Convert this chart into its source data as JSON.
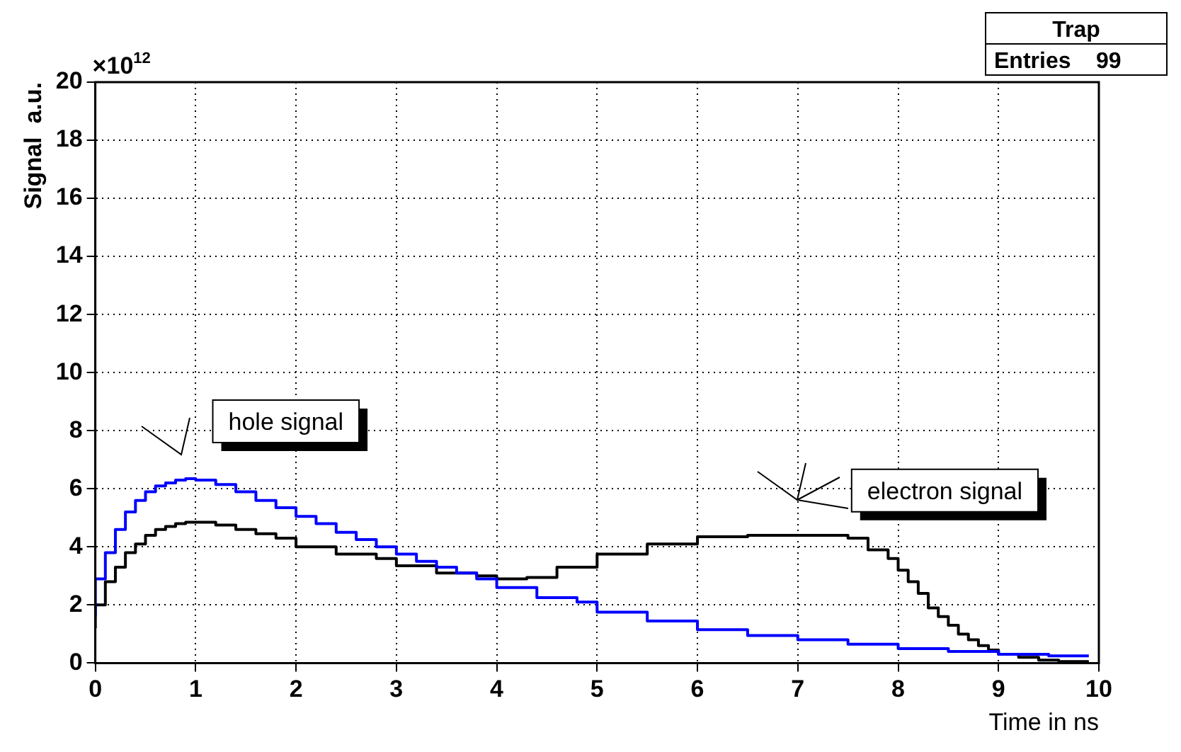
{
  "chart_data": {
    "type": "step",
    "xlabel": "Time in ns",
    "ylabel": "Signal  a.u.",
    "xlim": [
      0,
      10
    ],
    "xticks": [
      0,
      1,
      2,
      3,
      4,
      5,
      6,
      7,
      8,
      9,
      10
    ],
    "ylim": [
      0,
      20
    ],
    "yticks": [
      0,
      2,
      4,
      6,
      8,
      10,
      12,
      14,
      16,
      18,
      20
    ],
    "grid": true,
    "legend": false,
    "marker": "none",
    "annotations": [
      "×10$^{12}$",
      "Trap",
      "Entries    99",
      "hole signal",
      "electron signal"
    ],
    "series": [
      {
        "color": "#0000ff",
        "x": [
          0,
          0.1,
          0.2,
          0.3,
          0.4,
          0.5,
          0.6,
          0.7,
          0.8,
          0.9,
          1.0,
          1.2,
          1.4,
          1.6,
          1.8,
          2.0,
          2.2,
          2.4,
          2.6,
          2.8,
          3.0,
          3.2,
          3.4,
          3.6,
          3.8,
          4.0,
          4.4,
          4.8,
          5.0,
          5.5,
          6.0,
          6.5,
          7.0,
          7.5,
          8.0,
          8.5,
          9.0,
          9.5,
          9.9
        ],
        "values": [
          1.6,
          2.9,
          3.8,
          4.6,
          5.2,
          5.6,
          5.9,
          6.1,
          6.2,
          6.3,
          6.35,
          6.3,
          6.15,
          5.9,
          5.6,
          5.35,
          5.05,
          4.8,
          4.5,
          4.25,
          4.0,
          3.75,
          3.5,
          3.3,
          3.1,
          2.9,
          2.6,
          2.25,
          2.1,
          1.75,
          1.45,
          1.15,
          0.95,
          0.8,
          0.65,
          0.5,
          0.4,
          0.3,
          0.25
        ]
      },
      {
        "color": "#000000",
        "x": [
          0,
          0.1,
          0.2,
          0.3,
          0.4,
          0.5,
          0.6,
          0.7,
          0.8,
          0.9,
          1.0,
          1.2,
          1.4,
          1.6,
          1.8,
          2.0,
          2.4,
          2.8,
          3.0,
          3.4,
          3.8,
          4.0,
          4.3,
          4.6,
          5.0,
          5.5,
          6.0,
          6.5,
          7.0,
          7.5,
          7.7,
          7.9,
          8.0,
          8.1,
          8.2,
          8.3,
          8.4,
          8.5,
          8.6,
          8.7,
          8.8,
          8.9,
          9.0,
          9.2,
          9.4,
          9.6,
          9.9
        ],
        "values": [
          1.2,
          2.0,
          2.8,
          3.3,
          3.8,
          4.1,
          4.4,
          4.6,
          4.7,
          4.8,
          4.85,
          4.85,
          4.75,
          4.6,
          4.45,
          4.3,
          4.0,
          3.75,
          3.6,
          3.35,
          3.1,
          3.0,
          2.9,
          2.95,
          3.3,
          3.75,
          4.1,
          4.35,
          4.4,
          4.4,
          4.3,
          3.9,
          3.6,
          3.2,
          2.8,
          2.4,
          1.9,
          1.6,
          1.3,
          1.0,
          0.8,
          0.6,
          0.45,
          0.3,
          0.2,
          0.1,
          0.05
        ]
      }
    ]
  }
}
